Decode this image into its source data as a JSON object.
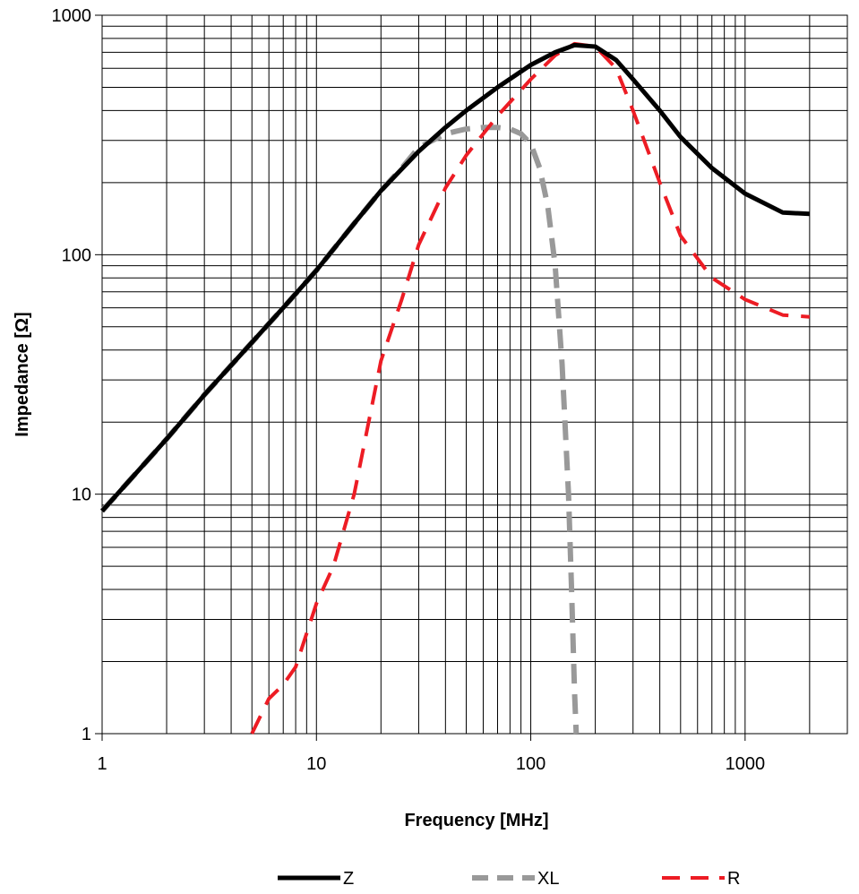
{
  "chart_data": {
    "type": "line",
    "title": "",
    "xlabel": "Frequency [MHz]",
    "ylabel": "Impedance [Ω]",
    "x_scale": "log",
    "y_scale": "log",
    "xlim": [
      1,
      3000
    ],
    "ylim": [
      1,
      1000
    ],
    "x_ticks": [
      1,
      10,
      100,
      1000
    ],
    "x_tick_labels": [
      "1",
      "10",
      "100",
      "1000"
    ],
    "y_ticks": [
      1,
      10,
      100,
      1000
    ],
    "y_tick_labels": [
      "1",
      "10",
      "100",
      "1000"
    ],
    "grid": true,
    "legend_position": "bottom",
    "series": [
      {
        "name": "Z",
        "color": "#000000",
        "style": "solid",
        "x": [
          1,
          2,
          3,
          5,
          7,
          10,
          15,
          20,
          30,
          40,
          50,
          70,
          100,
          130,
          160,
          200,
          250,
          300,
          400,
          500,
          700,
          1000,
          1500,
          2000
        ],
        "y": [
          8.5,
          17,
          26,
          43,
          60,
          86,
          135,
          185,
          270,
          340,
          400,
          500,
          620,
          700,
          750,
          740,
          650,
          540,
          400,
          310,
          230,
          180,
          150,
          148
        ]
      },
      {
        "name": "XL",
        "color": "#999999",
        "style": "dashed",
        "x": [
          1,
          2,
          3,
          5,
          7,
          10,
          15,
          20,
          25,
          30,
          40,
          50,
          60,
          70,
          80,
          90,
          100,
          110,
          120,
          130,
          140,
          150,
          155,
          160,
          163
        ],
        "y": [
          8.5,
          17,
          26,
          43,
          60,
          86,
          135,
          185,
          230,
          280,
          320,
          335,
          340,
          340,
          335,
          320,
          290,
          230,
          160,
          90,
          35,
          10,
          4,
          1.5,
          1
        ]
      },
      {
        "name": "R",
        "color": "#ed1c24",
        "style": "dashed",
        "x": [
          5,
          6,
          7,
          8,
          10,
          12,
          15,
          20,
          25,
          30,
          40,
          50,
          70,
          100,
          130,
          160,
          200,
          250,
          300,
          400,
          500,
          700,
          1000,
          1500,
          2000
        ],
        "y": [
          1,
          1.4,
          1.6,
          1.9,
          3.5,
          5,
          10,
          36,
          65,
          110,
          190,
          260,
          380,
          540,
          680,
          760,
          740,
          600,
          400,
          200,
          120,
          80,
          65,
          56,
          55
        ]
      }
    ]
  }
}
